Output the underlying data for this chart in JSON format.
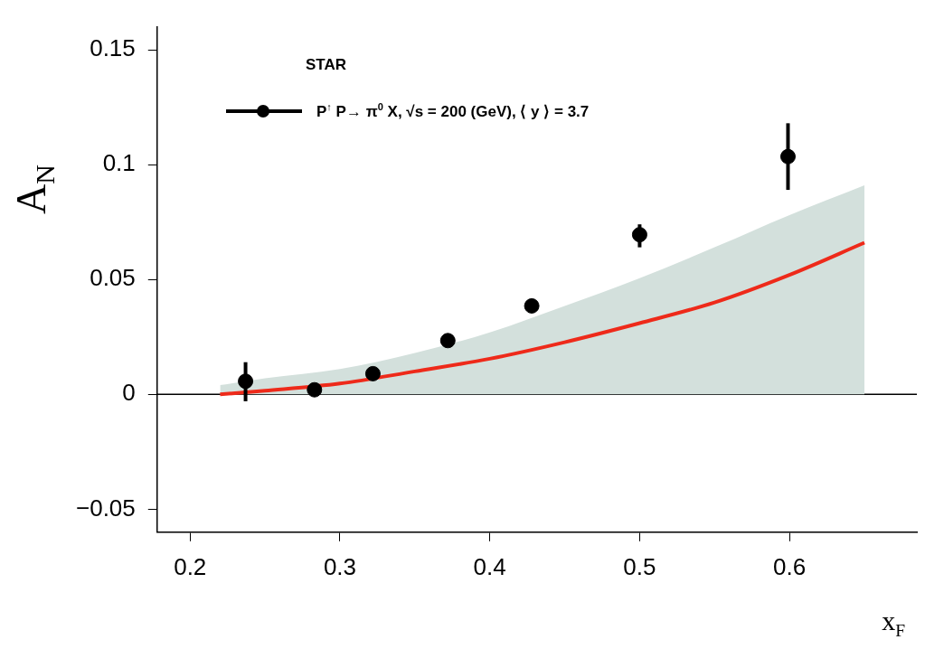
{
  "chart_data": {
    "type": "scatter",
    "xlabel": "x$_{F}$",
    "ylabel": "A$_{N}$",
    "annotations": [
      "STAR"
    ],
    "xlim": [
      0.178,
      0.685
    ],
    "xticks": [
      0.2,
      0.3,
      0.4,
      0.5,
      0.6
    ],
    "ylim": [
      -0.06,
      0.16
    ],
    "yticks": [
      {
        "value": -0.05,
        "label": "−0.05"
      },
      0,
      0.05,
      0.1,
      0.15
    ],
    "grid": false,
    "legend": "top left",
    "ref_lines": [
      {
        "axis": "y",
        "value": 0,
        "color": "#000000"
      }
    ],
    "series": [
      {
        "type": "area",
        "color": "#d3e0dc",
        "x": [
          0.22,
          0.25,
          0.3,
          0.35,
          0.4,
          0.45,
          0.5,
          0.55,
          0.6,
          0.65
        ],
        "values": [
          0.004,
          0.007,
          0.011,
          0.018,
          0.027,
          0.0385,
          0.0506,
          0.064,
          0.078,
          0.091
        ]
      },
      {
        "name": "P$^{↑}$ P→ π$^{0}$ X, √s = 200 (GeV), ⟨ y ⟩ = 3.7",
        "marker": "circle",
        "color": "#000000",
        "x": [
          0.237,
          0.283,
          0.322,
          0.372,
          0.428,
          0.5,
          0.599
        ],
        "values": [
          0.0057,
          0.002,
          0.009,
          0.0234,
          0.0385,
          0.0695,
          0.1035
        ],
        "errors": [
          [
            -0.003,
            0.014
          ],
          null,
          null,
          null,
          null,
          [
            0.064,
            0.074
          ],
          [
            0.089,
            0.118
          ]
        ]
      },
      {
        "type": "line",
        "marker": "none",
        "color": "#ee2a1a",
        "x": [
          0.22,
          0.25,
          0.3,
          0.35,
          0.4,
          0.45,
          0.5,
          0.55,
          0.6,
          0.65
        ],
        "values": [
          0,
          0.0016,
          0.0047,
          0.01,
          0.0155,
          0.0227,
          0.031,
          0.04,
          0.052,
          0.066
        ]
      }
    ]
  }
}
